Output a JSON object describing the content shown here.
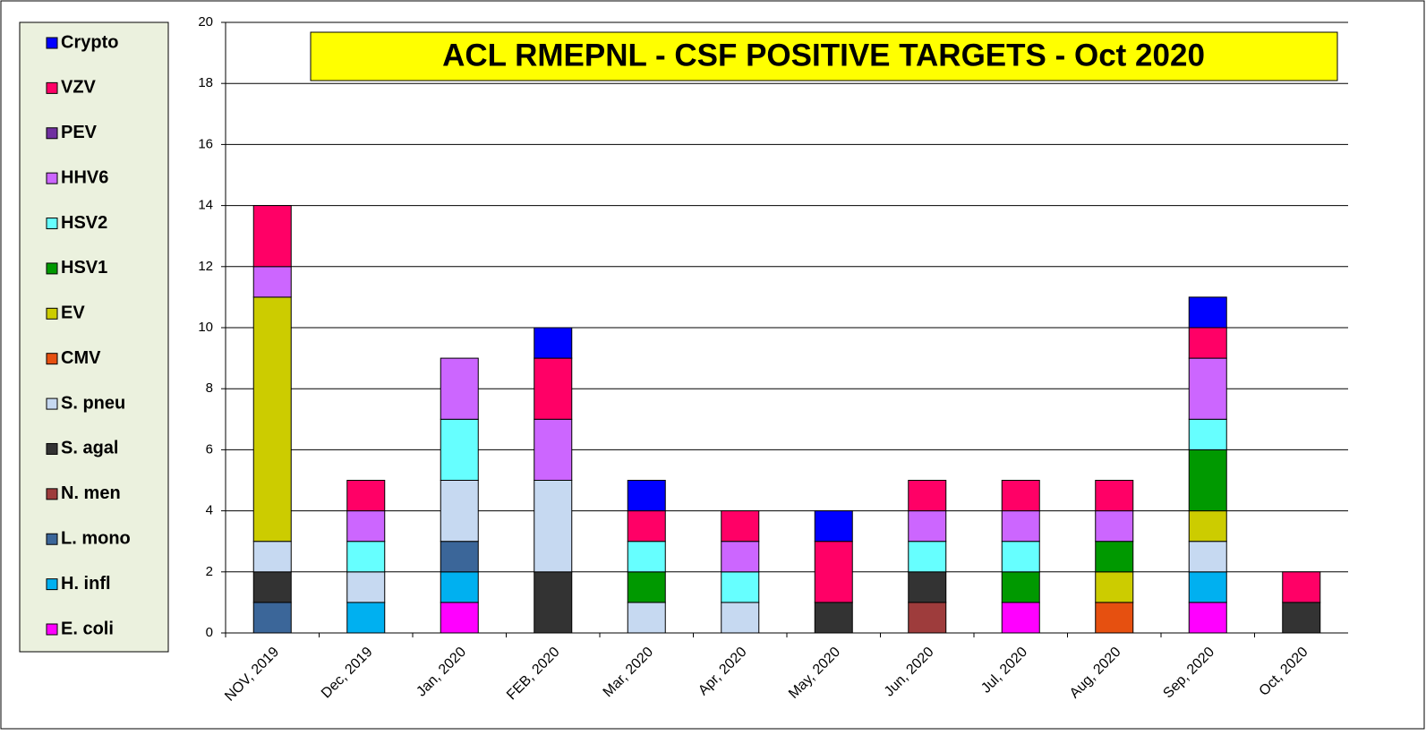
{
  "chart_data": {
    "type": "stacked_bar",
    "title": "ACL RMEPNL - CSF POSITIVE TARGETS - Oct 2020",
    "categories": [
      "NOV, 2019",
      "Dec, 2019",
      "Jan, 2020",
      "FEB, 2020",
      "Mar, 2020",
      "Apr, 2020",
      "May, 2020",
      "Jun, 2020",
      "Jul, 2020",
      "Aug, 2020",
      "Sep, 2020",
      "Oct, 2020"
    ],
    "series": [
      {
        "name": "E. coli",
        "color": "#ff00ff",
        "values": [
          0,
          0,
          1,
          0,
          0,
          0,
          0,
          0,
          1,
          0,
          1,
          0
        ]
      },
      {
        "name": "H. infl",
        "color": "#00b0f0",
        "values": [
          0,
          1,
          1,
          0,
          0,
          0,
          0,
          0,
          0,
          0,
          1,
          0
        ]
      },
      {
        "name": "L. mono",
        "color": "#3b6699",
        "values": [
          1,
          0,
          1,
          0,
          0,
          0,
          0,
          0,
          0,
          0,
          0,
          0
        ]
      },
      {
        "name": "N. men",
        "color": "#9e3c3c",
        "values": [
          0,
          0,
          0,
          0,
          0,
          0,
          0,
          1,
          0,
          0,
          0,
          0
        ]
      },
      {
        "name": "S. agal",
        "color": "#333333",
        "values": [
          1,
          0,
          0,
          2,
          0,
          0,
          1,
          1,
          0,
          0,
          0,
          1
        ]
      },
      {
        "name": "S. pneu",
        "color": "#c6d9f1",
        "values": [
          1,
          1,
          2,
          3,
          1,
          1,
          0,
          0,
          0,
          0,
          1,
          0
        ]
      },
      {
        "name": "CMV",
        "color": "#e65010",
        "values": [
          0,
          0,
          0,
          0,
          0,
          0,
          0,
          0,
          0,
          1,
          0,
          0
        ]
      },
      {
        "name": "EV",
        "color": "#cccc00",
        "values": [
          8,
          0,
          0,
          0,
          0,
          0,
          0,
          0,
          0,
          1,
          1,
          0
        ]
      },
      {
        "name": "HSV1",
        "color": "#009900",
        "values": [
          0,
          0,
          0,
          0,
          1,
          0,
          0,
          0,
          1,
          1,
          2,
          0
        ]
      },
      {
        "name": "HSV2",
        "color": "#66ffff",
        "values": [
          0,
          1,
          2,
          0,
          1,
          1,
          0,
          1,
          1,
          0,
          1,
          0
        ]
      },
      {
        "name": "HHV6",
        "color": "#cc66ff",
        "values": [
          1,
          1,
          2,
          2,
          0,
          1,
          0,
          1,
          1,
          1,
          2,
          0
        ]
      },
      {
        "name": "PEV",
        "color": "#7030a0",
        "values": [
          0,
          0,
          0,
          0,
          0,
          0,
          0,
          0,
          0,
          0,
          0,
          0
        ]
      },
      {
        "name": "VZV",
        "color": "#ff0066",
        "values": [
          2,
          1,
          0,
          2,
          1,
          1,
          2,
          1,
          1,
          1,
          1,
          1
        ]
      },
      {
        "name": "Crypto",
        "color": "#0000ff",
        "values": [
          0,
          0,
          0,
          1,
          1,
          0,
          1,
          0,
          0,
          0,
          1,
          0
        ]
      }
    ],
    "ylim": [
      0,
      20
    ],
    "yticks": [
      0,
      2,
      4,
      6,
      8,
      10,
      12,
      14,
      16,
      18,
      20
    ],
    "grid": true,
    "legend": "left"
  }
}
